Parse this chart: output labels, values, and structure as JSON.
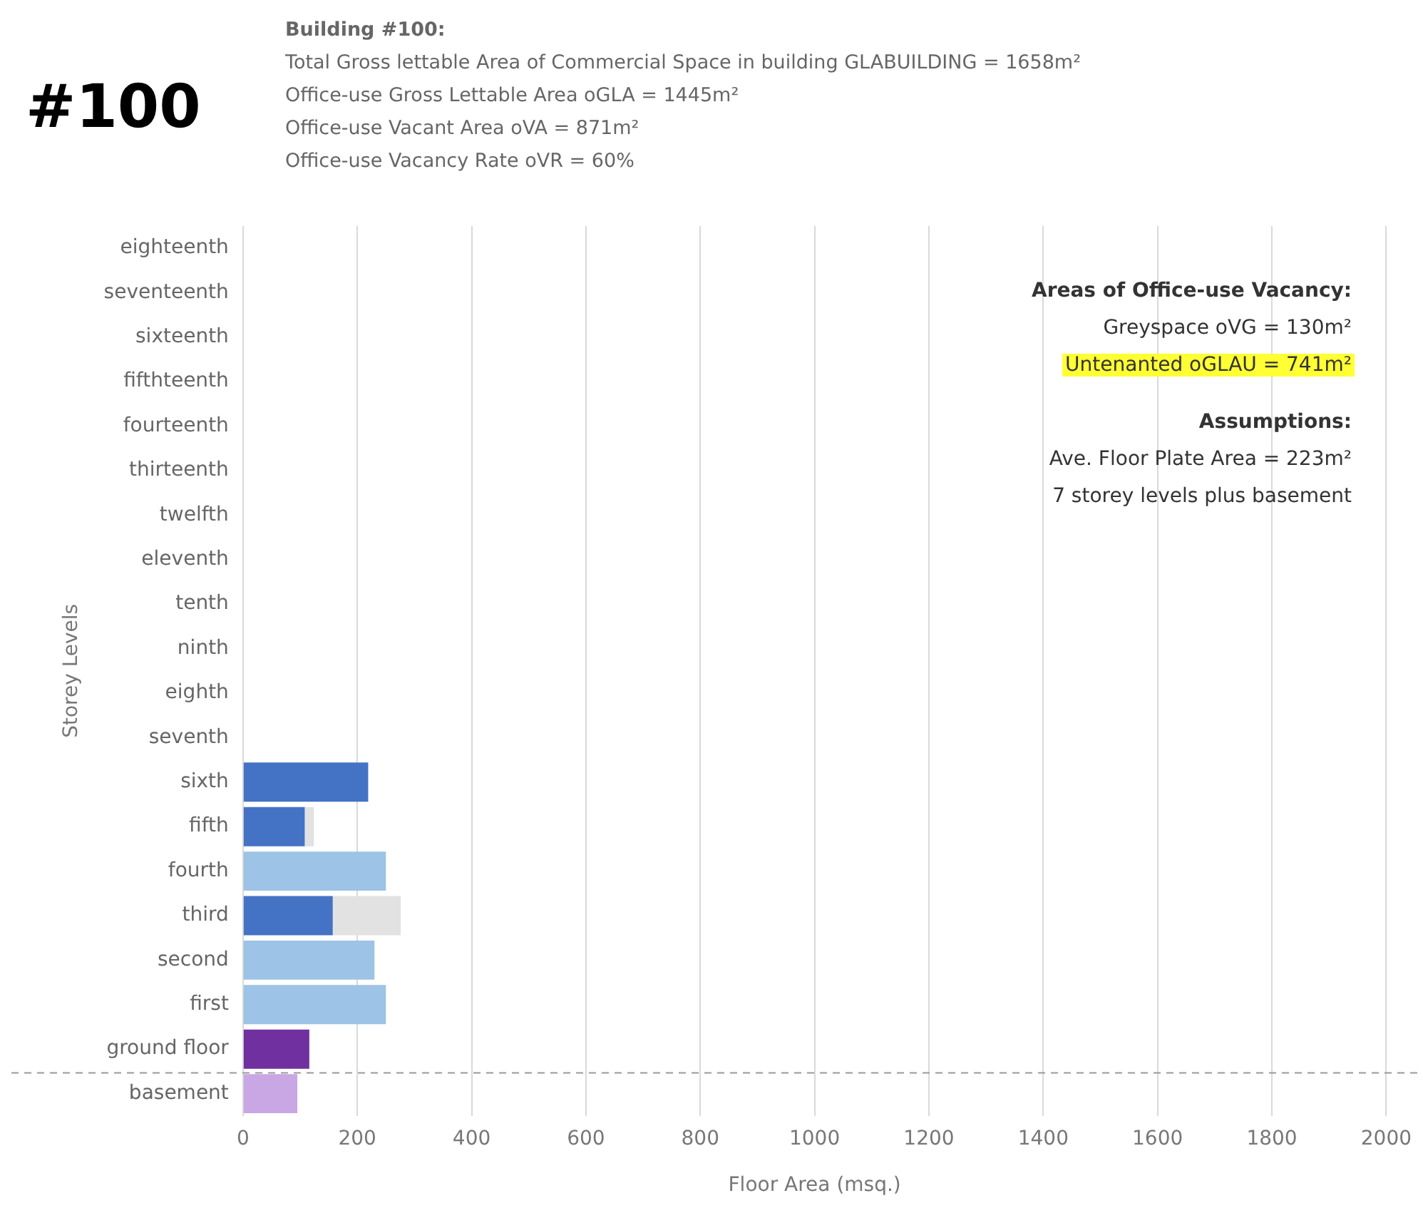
{
  "chart_data": {
    "type": "bar",
    "orientation": "horizontal",
    "stacked": true,
    "title": "#100",
    "subtitle": "Building #100:",
    "annotations": [
      "Total Gross lettable Area of Commercial Space in building GLABUILDING  = 1658m²",
      "Office-use Gross Lettable Area oGLA = 1445m²",
      "Office-use Vacant Area oVA = 871m²",
      "Office-use Vacancy Rate oVR = 60%",
      "Areas of Office-use Vacancy:",
      "Greyspace oVG = 130m²",
      "Untenanted  oGLAU = 741m²",
      "Assumptions:",
      "Ave.  Floor Plate Area = 223m²",
      "7 storey levels plus basement"
    ],
    "xlabel": "Floor Area (msq.)",
    "ylabel": "Storey Levels",
    "categories": [
      "eighteenth",
      "seventeenth",
      "sixteenth",
      "fifthteenth",
      "fourteenth",
      "thirteenth",
      "twelfth",
      "eleventh",
      "tenth",
      "ninth",
      "eighth",
      "seventh",
      "sixth",
      "fifth",
      "fourth",
      "third",
      "second",
      "first",
      "ground floor",
      "basement"
    ],
    "series": [
      {
        "colors": [
          "#4472c4",
          "#4472c4",
          "#4472c4",
          "#4472c4",
          "#4472c4",
          "#4472c4",
          "#4472c4",
          "#4472c4",
          "#4472c4",
          "#4472c4",
          "#4472c4",
          "#4472c4",
          "#4472c4",
          "#4472c4",
          "#9dc3e6",
          "#4472c4",
          "#9dc3e6",
          "#9dc3e6",
          "#7030a0",
          "#c9a6e4"
        ],
        "values": [
          null,
          null,
          null,
          null,
          null,
          null,
          null,
          null,
          null,
          null,
          null,
          null,
          219,
          108,
          250,
          157,
          230,
          250,
          116,
          95
        ]
      },
      {
        "color": "#e2e2e2",
        "values": [
          null,
          null,
          null,
          null,
          null,
          null,
          null,
          null,
          null,
          null,
          null,
          null,
          null,
          16,
          null,
          119,
          null,
          null,
          null,
          null
        ]
      }
    ],
    "xlim": [
      0,
      2000
    ],
    "xticks": [
      0,
      200,
      400,
      600,
      800,
      1000,
      1200,
      1400,
      1600,
      1800,
      2000
    ],
    "grid": "x",
    "legend": false,
    "ref_lines": [
      {
        "axis": "y",
        "value": "basement",
        "color": "#999999",
        "line_style": "dashed"
      }
    ]
  }
}
